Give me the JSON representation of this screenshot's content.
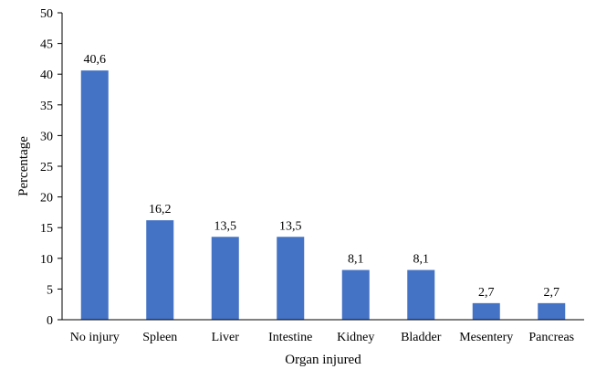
{
  "chart_data": {
    "type": "bar",
    "categories": [
      "No injury",
      "Spleen",
      "Liver",
      "Intestine",
      "Kidney",
      "Bladder",
      "Mesentery",
      "Pancreas"
    ],
    "values": [
      40.6,
      16.2,
      13.5,
      13.5,
      8.1,
      8.1,
      2.7,
      2.7
    ],
    "value_labels": [
      "40,6",
      "16,2",
      "13,5",
      "13,5",
      "8,1",
      "8,1",
      "2,7",
      "2,7"
    ],
    "title": "",
    "xlabel": "Organ injured",
    "ylabel": "Percentage",
    "ylim": [
      0,
      50
    ],
    "yticks": [
      0,
      5,
      10,
      15,
      20,
      25,
      30,
      35,
      40,
      45,
      50
    ],
    "grid": false,
    "legend": "none",
    "bar_color": "#4472C4"
  }
}
